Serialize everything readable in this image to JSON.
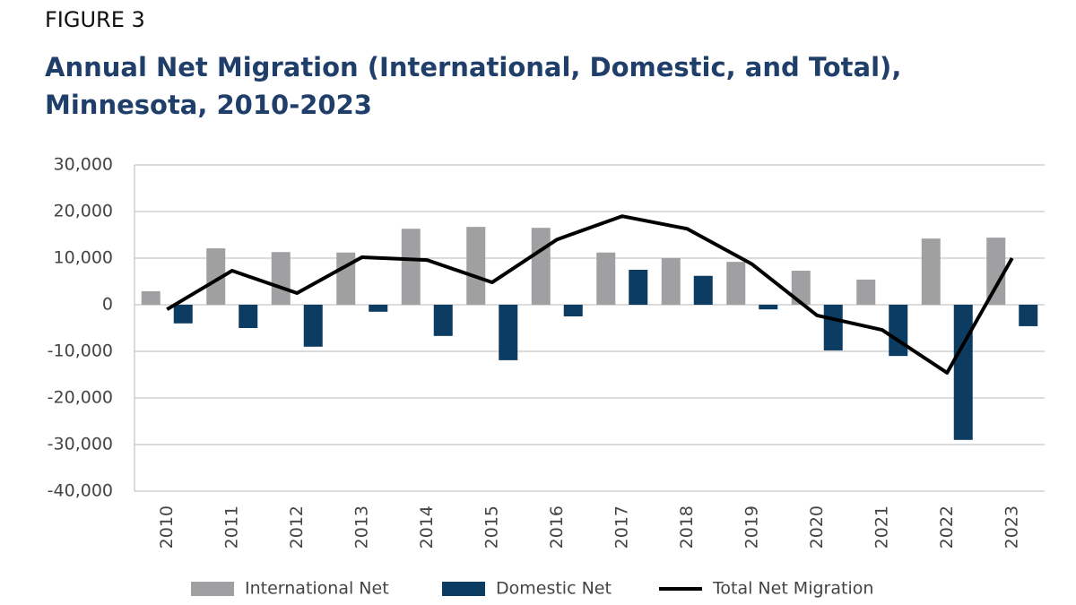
{
  "chart_data": {
    "type": "bar",
    "figure_label": "FIGURE 3",
    "title": "Annual Net Migration (International, Domestic, and Total), Minnesota, 2010-2023",
    "categories": [
      "2010",
      "2011",
      "2012",
      "2013",
      "2014",
      "2015",
      "2016",
      "2017",
      "2018",
      "2019",
      "2020",
      "2021",
      "2022",
      "2023"
    ],
    "series": [
      {
        "name": "International Net",
        "color": "#a0a0a2",
        "values": [
          2900,
          12100,
          11300,
          11200,
          16300,
          16700,
          16500,
          11200,
          10000,
          9200,
          7300,
          5400,
          14200,
          14400
        ]
      },
      {
        "name": "Domestic Net",
        "color": "#0d3c63",
        "values": [
          -4000,
          -5000,
          -9000,
          -1500,
          -6700,
          -11900,
          -2500,
          7500,
          6200,
          -1000,
          -9800,
          -11000,
          -29000,
          -4600
        ]
      },
      {
        "name": "Total Net Migration",
        "color": "#000000",
        "type": "line",
        "values": [
          -1000,
          7300,
          2500,
          10200,
          9600,
          4800,
          14000,
          19000,
          16300,
          8700,
          -2300,
          -5400,
          -14600,
          10000
        ]
      }
    ],
    "ylim": [
      -40000,
      30000
    ],
    "yticks": [
      {
        "value": -40000,
        "label": "-40,000"
      },
      {
        "value": -30000,
        "label": "-30,000"
      },
      {
        "value": -20000,
        "label": "-20,000"
      },
      {
        "value": -10000,
        "label": "-10,000"
      },
      0,
      {
        "value": 10000,
        "label": "10,000"
      },
      {
        "value": 20000,
        "label": "20,000"
      },
      {
        "value": 30000,
        "label": "30,000"
      }
    ],
    "grid": true
  }
}
